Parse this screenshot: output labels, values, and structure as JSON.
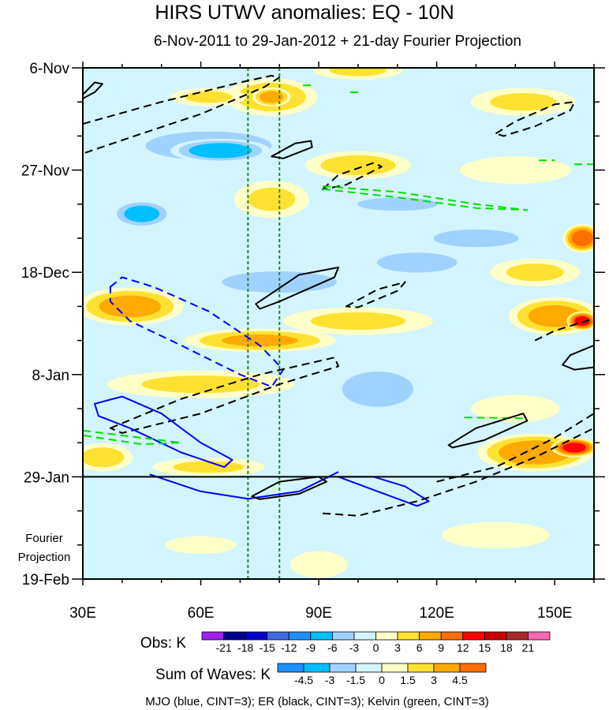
{
  "chart_data": {
    "type": "heatmap",
    "title": "HIRS UTWV anomalies: EQ - 10N",
    "subtitle": "6-Nov-2011 to 29-Jan-2012 + 21-day Fourier Projection",
    "xlabel": "",
    "ylabel": "",
    "xlim": [
      30,
      160
    ],
    "ylim_days": [
      0,
      105
    ],
    "x_ticks": [
      {
        "value": 30,
        "label": "30E"
      },
      {
        "value": 60,
        "label": "60E"
      },
      {
        "value": 90,
        "label": "90E"
      },
      {
        "value": 120,
        "label": "120E"
      },
      {
        "value": 150,
        "label": "150E"
      }
    ],
    "x_minor_step": 10,
    "y_ticks": [
      {
        "day": 0,
        "label": "6-Nov"
      },
      {
        "day": 21,
        "label": "27-Nov"
      },
      {
        "day": 42,
        "label": "18-Dec"
      },
      {
        "day": 63,
        "label": "8-Jan"
      },
      {
        "day": 84,
        "label": "29-Jan"
      },
      {
        "day": 105,
        "label": "19-Feb"
      }
    ],
    "y_minor_step": 7,
    "projection_start_day": 84,
    "projection_label": [
      "Fourier",
      "Projection"
    ],
    "reference_lines_lon": [
      72,
      80
    ],
    "background_value": -1,
    "field_approx": [
      {
        "lon": 78,
        "day": 6,
        "rlon": 12,
        "rday": 4,
        "value": 6
      },
      {
        "lon": 78,
        "day": 6,
        "rlon": 5,
        "rday": 2,
        "value": 9
      },
      {
        "lon": 62,
        "day": 6,
        "rlon": 10,
        "rday": 2,
        "value": 4
      },
      {
        "lon": 100,
        "day": 0.5,
        "rlon": 12,
        "rday": 2,
        "value": 4
      },
      {
        "lon": 142,
        "day": 7,
        "rlon": 14,
        "rday": 3,
        "value": 4
      },
      {
        "lon": 62,
        "day": 16,
        "rlon": 22,
        "rday": 4,
        "value": -6
      },
      {
        "lon": 65,
        "day": 17,
        "rlon": 13,
        "rday": 2.5,
        "value": -9
      },
      {
        "lon": 100,
        "day": 20,
        "rlon": 14,
        "rday": 3,
        "value": 5
      },
      {
        "lon": 140,
        "day": 21,
        "rlon": 15,
        "rday": 3,
        "value": 3
      },
      {
        "lon": 110,
        "day": 28,
        "rlon": 15,
        "rday": 2,
        "value": -5
      },
      {
        "lon": 45,
        "day": 30,
        "rlon": 8,
        "rday": 3,
        "value": -8
      },
      {
        "lon": 78,
        "day": 27,
        "rlon": 10,
        "rday": 4,
        "value": 4
      },
      {
        "lon": 157,
        "day": 35,
        "rlon": 5,
        "rday": 3,
        "value": 12
      },
      {
        "lon": 130,
        "day": 35,
        "rlon": 18,
        "rday": 3,
        "value": -4
      },
      {
        "lon": 80,
        "day": 44,
        "rlon": 20,
        "rday": 3,
        "value": -6
      },
      {
        "lon": 115,
        "day": 40,
        "rlon": 15,
        "rday": 3,
        "value": -5
      },
      {
        "lon": 145,
        "day": 42,
        "rlon": 12,
        "rday": 3,
        "value": 4
      },
      {
        "lon": 42,
        "day": 49,
        "rlon": 14,
        "rday": 4,
        "value": 8
      },
      {
        "lon": 75,
        "day": 56,
        "rlon": 20,
        "rday": 2.5,
        "value": 7
      },
      {
        "lon": 150,
        "day": 51,
        "rlon": 12,
        "rday": 4,
        "value": 8
      },
      {
        "lon": 157,
        "day": 52,
        "rlon": 4,
        "rday": 2,
        "value": 15
      },
      {
        "lon": 100,
        "day": 52,
        "rlon": 20,
        "rday": 3,
        "value": 4
      },
      {
        "lon": 105,
        "day": 66,
        "rlon": 15,
        "rday": 6,
        "value": -4
      },
      {
        "lon": 60,
        "day": 65,
        "rlon": 25,
        "rday": 3,
        "value": 4
      },
      {
        "lon": 140,
        "day": 70,
        "rlon": 12,
        "rday": 3,
        "value": 3
      },
      {
        "lon": 145,
        "day": 79,
        "rlon": 15,
        "rday": 4,
        "value": 9
      },
      {
        "lon": 155,
        "day": 78,
        "rlon": 6,
        "rday": 2,
        "value": 15
      },
      {
        "lon": 35,
        "day": 80,
        "rlon": 8,
        "rday": 3,
        "value": 5
      },
      {
        "lon": 62,
        "day": 82,
        "rlon": 15,
        "rday": 2,
        "value": 4
      },
      {
        "lon": 90,
        "day": 102,
        "rlon": 8,
        "rday": 3,
        "value": 1.5
      },
      {
        "lon": 60,
        "day": 98,
        "rlon": 10,
        "rday": 2,
        "value": 1.5
      },
      {
        "lon": 135,
        "day": 96,
        "rlon": 15,
        "rday": 3,
        "value": 1.5
      }
    ],
    "wave_contours": [
      {
        "wave": "ER",
        "sign": "positive",
        "closed": true,
        "points": [
          [
            30,
            11.5
          ],
          [
            50,
            7
          ],
          [
            70,
            3
          ],
          [
            78,
            1.6
          ],
          [
            80,
            2
          ],
          [
            76,
            4
          ],
          [
            60,
            9.5
          ],
          [
            45,
            13.5
          ],
          [
            30,
            17.6
          ]
        ]
      },
      {
        "wave": "ER",
        "sign": "negative",
        "closed": false,
        "points": [
          [
            30,
            5.5
          ],
          [
            33,
            3
          ],
          [
            35,
            3.3
          ],
          [
            33,
            5
          ],
          [
            30,
            6.3
          ]
        ]
      },
      {
        "wave": "ER",
        "sign": "negative",
        "closed": true,
        "points": [
          [
            78,
            18.2
          ],
          [
            84,
            15.5
          ],
          [
            88,
            15
          ],
          [
            88.3,
            16.3
          ],
          [
            81,
            18.6
          ]
        ]
      },
      {
        "wave": "ER",
        "sign": "positive",
        "closed": true,
        "points": [
          [
            135,
            13.5
          ],
          [
            140,
            11
          ],
          [
            150,
            7.5
          ],
          [
            155,
            7
          ],
          [
            154,
            8.7
          ],
          [
            145,
            12
          ],
          [
            137,
            14
          ]
        ]
      },
      {
        "wave": "ER",
        "sign": "positive",
        "closed": true,
        "points": [
          [
            91,
            24.9
          ],
          [
            95,
            22
          ],
          [
            104,
            19.5
          ],
          [
            106,
            20.3
          ],
          [
            97,
            24
          ],
          [
            91,
            25
          ]
        ]
      },
      {
        "wave": "Kelvin",
        "sign": "positive",
        "closed": true,
        "points": [
          [
            91,
            24.3
          ],
          [
            110,
            25.5
          ],
          [
            130,
            28
          ],
          [
            143,
            29.2
          ],
          [
            130,
            28.8
          ],
          [
            110,
            26.6
          ],
          [
            91,
            24.9
          ]
        ]
      },
      {
        "wave": "Kelvin",
        "sign": "positive",
        "closed": false,
        "points": [
          [
            146,
            19
          ],
          [
            150,
            19
          ]
        ]
      },
      {
        "wave": "Kelvin",
        "sign": "positive",
        "closed": false,
        "points": [
          [
            155,
            19.8
          ],
          [
            160,
            19.8
          ]
        ]
      },
      {
        "wave": "Kelvin",
        "sign": "positive",
        "closed": false,
        "points": [
          [
            86,
            3.6
          ],
          [
            89,
            3.6
          ]
        ]
      },
      {
        "wave": "Kelvin",
        "sign": "positive",
        "closed": false,
        "points": [
          [
            98,
            5
          ],
          [
            100,
            5
          ]
        ]
      },
      {
        "wave": "ER",
        "sign": "negative",
        "closed": true,
        "points": [
          [
            74,
            48.5
          ],
          [
            85,
            42.5
          ],
          [
            95,
            41
          ],
          [
            94,
            43
          ],
          [
            80,
            48
          ],
          [
            75,
            49.5
          ]
        ]
      },
      {
        "wave": "ER",
        "sign": "positive",
        "closed": true,
        "points": [
          [
            97,
            49
          ],
          [
            105,
            45.5
          ],
          [
            112,
            44
          ],
          [
            110,
            45.8
          ],
          [
            100,
            49.2
          ]
        ]
      },
      {
        "wave": "MJO",
        "sign": "positive",
        "closed": true,
        "points": [
          [
            37,
            45
          ],
          [
            40,
            43
          ],
          [
            48,
            45
          ],
          [
            62,
            50
          ],
          [
            75,
            57
          ],
          [
            81,
            62
          ],
          [
            78,
            65.5
          ],
          [
            70,
            63
          ],
          [
            55,
            57
          ],
          [
            42,
            52
          ],
          [
            37,
            48
          ]
        ]
      },
      {
        "wave": "ER",
        "sign": "positive",
        "closed": true,
        "points": [
          [
            37,
            74
          ],
          [
            55,
            68
          ],
          [
            75,
            63
          ],
          [
            94,
            59.5
          ],
          [
            95,
            61.3
          ],
          [
            80,
            65
          ],
          [
            60,
            71
          ],
          [
            40,
            75
          ]
        ]
      },
      {
        "wave": "MJO",
        "sign": "negative",
        "closed": true,
        "points": [
          [
            33,
            69
          ],
          [
            40,
            67.5
          ],
          [
            50,
            71
          ],
          [
            60,
            77
          ],
          [
            68,
            80.5
          ],
          [
            66,
            82
          ],
          [
            55,
            79
          ],
          [
            42,
            74
          ],
          [
            34,
            71.5
          ]
        ]
      },
      {
        "wave": "Kelvin",
        "sign": "positive",
        "closed": true,
        "points": [
          [
            30,
            74.5
          ],
          [
            45,
            76
          ],
          [
            55,
            77
          ],
          [
            45,
            77.3
          ],
          [
            30,
            75.5
          ]
        ]
      },
      {
        "wave": "Kelvin",
        "sign": "positive",
        "closed": false,
        "points": [
          [
            127,
            71.8
          ],
          [
            143,
            72
          ]
        ]
      },
      {
        "wave": "MJO",
        "sign": "negative",
        "closed": false,
        "points": [
          [
            47,
            83.5
          ],
          [
            60,
            87
          ],
          [
            72,
            88.5
          ],
          [
            85,
            87
          ],
          [
            95,
            83
          ]
        ]
      },
      {
        "wave": "MJO",
        "sign": "negative",
        "closed": true,
        "points": [
          [
            95,
            84
          ],
          [
            105,
            87
          ],
          [
            115,
            90
          ],
          [
            118,
            89
          ],
          [
            112,
            86
          ],
          [
            104,
            84
          ]
        ]
      },
      {
        "wave": "ER",
        "sign": "negative",
        "closed": true,
        "points": [
          [
            73,
            88
          ],
          [
            80,
            85
          ],
          [
            90,
            84
          ],
          [
            92,
            85
          ],
          [
            85,
            87.5
          ],
          [
            75,
            88.6
          ]
        ]
      },
      {
        "wave": "ER",
        "sign": "positive",
        "closed": false,
        "points": [
          [
            91,
            91.5
          ],
          [
            100,
            92
          ],
          [
            115,
            89
          ],
          [
            130,
            85
          ],
          [
            145,
            80
          ],
          [
            160,
            74
          ]
        ]
      },
      {
        "wave": "ER",
        "sign": "positive",
        "closed": false,
        "points": [
          [
            120,
            85
          ],
          [
            135,
            82
          ],
          [
            150,
            76
          ],
          [
            160,
            71
          ]
        ]
      },
      {
        "wave": "ER",
        "sign": "negative",
        "closed": true,
        "points": [
          [
            123,
            77.5
          ],
          [
            130,
            74
          ],
          [
            142,
            71
          ],
          [
            143,
            72.5
          ],
          [
            132,
            76.5
          ],
          [
            124,
            78
          ]
        ]
      },
      {
        "wave": "ER",
        "sign": "negative",
        "closed": false,
        "points": [
          [
            160,
            57
          ],
          [
            154,
            59
          ],
          [
            152,
            61
          ],
          [
            155,
            62
          ],
          [
            160,
            61.5
          ]
        ]
      },
      {
        "wave": "ER",
        "sign": "positive",
        "closed": false,
        "points": [
          [
            145,
            56
          ],
          [
            150,
            54
          ],
          [
            160,
            51.5
          ]
        ]
      }
    ],
    "obs_colorbar": {
      "label": "Obs: K",
      "levels": [
        "-21",
        "-18",
        "-15",
        "-12",
        "-9",
        "-6",
        "-3",
        "0",
        "3",
        "6",
        "9",
        "12",
        "15",
        "18",
        "21"
      ],
      "colors": [
        "#a020f0",
        "#00008b",
        "#0000cd",
        "#4169e1",
        "#1e90ff",
        "#00bfff",
        "#a0d2ff",
        "#d2f5ff",
        "#ffffc8",
        "#ffe132",
        "#ffaa00",
        "#ff6e00",
        "#ff0000",
        "#c80000",
        "#a52a2a",
        "#ff69b4"
      ]
    },
    "waves_colorbar": {
      "label": "Sum of Waves: K",
      "levels": [
        "-4.5",
        "-3",
        "-1.5",
        "0",
        "1.5",
        "3",
        "4.5"
      ],
      "colors": [
        "#1e90ff",
        "#00bfff",
        "#a0d2ff",
        "#d2f5ff",
        "#ffffc8",
        "#ffe132",
        "#ffaa00",
        "#ff6e00"
      ]
    },
    "legend_note": "MJO (blue, CINT=3); ER (black, CINT=3); Kelvin (green, CINT=3)",
    "wave_colors": {
      "MJO": "#0000ff",
      "ER": "#000000",
      "Kelvin": "#00e000"
    },
    "reference_line_color": "#228b22",
    "grid": false
  }
}
